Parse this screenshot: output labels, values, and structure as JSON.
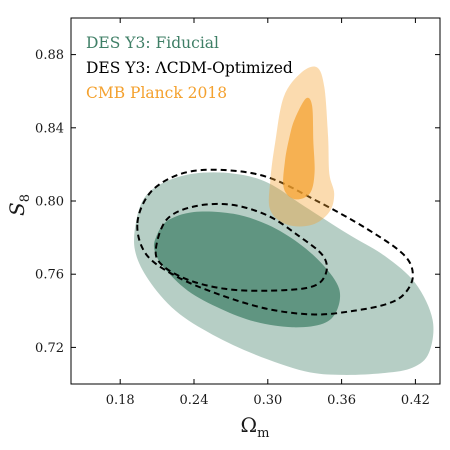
{
  "chart_data": {
    "type": "contour",
    "xlabel": "Ω",
    "xlabel_sub": "m",
    "ylabel": "S",
    "ylabel_sub": "8",
    "xlim": [
      0.14,
      0.44
    ],
    "ylim": [
      0.7,
      0.9
    ],
    "xticks": [
      0.18,
      0.24,
      0.3,
      0.36,
      0.42
    ],
    "xtick_labels": [
      "0.18",
      "0.24",
      "0.30",
      "0.36",
      "0.42"
    ],
    "yticks": [
      0.72,
      0.76,
      0.8,
      0.84,
      0.88
    ],
    "ytick_labels": [
      "0.72",
      "0.76",
      "0.80",
      "0.84",
      "0.88"
    ],
    "grid": false,
    "legend_position": "top-left",
    "series": [
      {
        "name": "DES Y3: Fiducial",
        "color": "#3f7f66",
        "style": "filled",
        "contours": [
          {
            "level": "95%",
            "opacity": 0.38,
            "points": [
              [
                0.193,
                0.789
              ],
              [
                0.2,
                0.802
              ],
              [
                0.215,
                0.81
              ],
              [
                0.24,
                0.815
              ],
              [
                0.272,
                0.815
              ],
              [
                0.3,
                0.81
              ],
              [
                0.33,
                0.797
              ],
              [
                0.365,
                0.782
              ],
              [
                0.395,
                0.77
              ],
              [
                0.42,
                0.755
              ],
              [
                0.434,
                0.735
              ],
              [
                0.431,
                0.717
              ],
              [
                0.418,
                0.709
              ],
              [
                0.395,
                0.706
              ],
              [
                0.36,
                0.705
              ],
              [
                0.33,
                0.707
              ],
              [
                0.29,
                0.716
              ],
              [
                0.255,
                0.727
              ],
              [
                0.225,
                0.74
              ],
              [
                0.203,
                0.757
              ],
              [
                0.192,
                0.773
              ]
            ]
          },
          {
            "level": "68%",
            "opacity": 0.72,
            "points": [
              [
                0.209,
                0.78
              ],
              [
                0.218,
                0.789
              ],
              [
                0.24,
                0.794
              ],
              [
                0.272,
                0.793
              ],
              [
                0.3,
                0.787
              ],
              [
                0.325,
                0.777
              ],
              [
                0.345,
                0.765
              ],
              [
                0.358,
                0.752
              ],
              [
                0.356,
                0.74
              ],
              [
                0.345,
                0.733
              ],
              [
                0.32,
                0.731
              ],
              [
                0.29,
                0.734
              ],
              [
                0.262,
                0.741
              ],
              [
                0.235,
                0.751
              ],
              [
                0.215,
                0.764
              ],
              [
                0.208,
                0.773
              ]
            ]
          }
        ]
      },
      {
        "name": "DES Y3: ΛCDM-Optimized",
        "color": "#000000",
        "style": "dashed",
        "contours": [
          {
            "level": "95%",
            "points": [
              [
                0.194,
                0.788
              ],
              [
                0.205,
                0.805
              ],
              [
                0.23,
                0.815
              ],
              [
                0.262,
                0.817
              ],
              [
                0.3,
                0.813
              ],
              [
                0.34,
                0.8
              ],
              [
                0.38,
                0.785
              ],
              [
                0.41,
                0.771
              ],
              [
                0.418,
                0.76
              ],
              [
                0.412,
                0.75
              ],
              [
                0.398,
                0.744
              ],
              [
                0.37,
                0.74
              ],
              [
                0.338,
                0.738
              ],
              [
                0.3,
                0.741
              ],
              [
                0.26,
                0.749
              ],
              [
                0.225,
                0.759
              ],
              [
                0.201,
                0.771
              ]
            ]
          },
          {
            "level": "68%",
            "points": [
              [
                0.209,
                0.774
              ],
              [
                0.218,
                0.79
              ],
              [
                0.24,
                0.797
              ],
              [
                0.27,
                0.798
              ],
              [
                0.3,
                0.792
              ],
              [
                0.325,
                0.781
              ],
              [
                0.345,
                0.77
              ],
              [
                0.347,
                0.76
              ],
              [
                0.335,
                0.753
              ],
              [
                0.3,
                0.751
              ],
              [
                0.265,
                0.752
              ],
              [
                0.235,
                0.757
              ],
              [
                0.214,
                0.765
              ]
            ]
          }
        ]
      },
      {
        "name": "CMB Planck 2018",
        "color": "#f4a12e",
        "style": "filled",
        "contours": [
          {
            "level": "95%",
            "opacity": 0.38,
            "points": [
              [
                0.313,
                0.857
              ],
              [
                0.327,
                0.87
              ],
              [
                0.34,
                0.873
              ],
              [
                0.346,
                0.862
              ],
              [
                0.349,
                0.835
              ],
              [
                0.35,
                0.815
              ],
              [
                0.354,
                0.804
              ],
              [
                0.35,
                0.794
              ],
              [
                0.336,
                0.787
              ],
              [
                0.316,
                0.787
              ],
              [
                0.302,
                0.795
              ],
              [
                0.302,
                0.811
              ],
              [
                0.306,
                0.832
              ]
            ]
          },
          {
            "level": "68%",
            "opacity": 0.72,
            "points": [
              [
                0.322,
                0.845
              ],
              [
                0.331,
                0.856
              ],
              [
                0.336,
                0.852
              ],
              [
                0.337,
                0.833
              ],
              [
                0.338,
                0.815
              ],
              [
                0.334,
                0.804
              ],
              [
                0.322,
                0.801
              ],
              [
                0.313,
                0.807
              ],
              [
                0.314,
                0.822
              ],
              [
                0.318,
                0.836
              ]
            ]
          }
        ]
      }
    ]
  }
}
